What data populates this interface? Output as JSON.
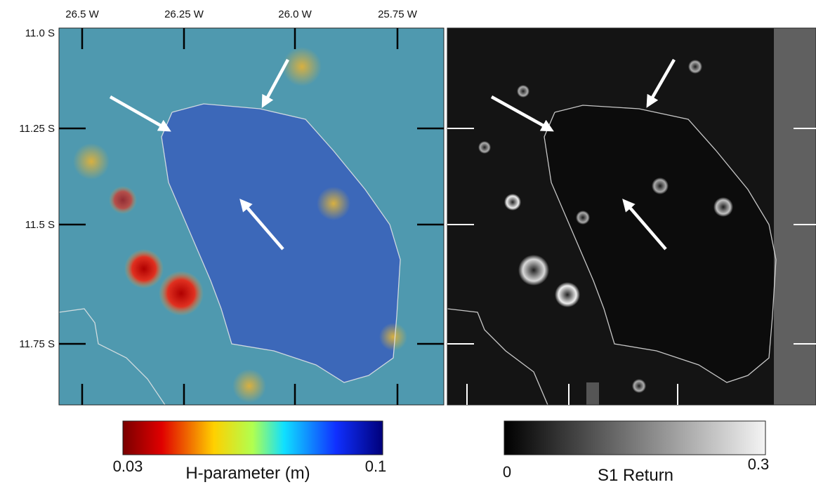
{
  "left_panel": {
    "x_labels": [
      "26.5 W",
      "26.25 W",
      "26.0 W",
      "25.75 W"
    ],
    "y_labels": [
      "11.0 S",
      "11.25 S",
      "11.5 S",
      "11.75 S"
    ],
    "colorbar": {
      "min_label": "0.03",
      "max_label": "0.1",
      "title": "H-parameter (m)"
    }
  },
  "right_panel": {
    "colorbar": {
      "min_label": "0",
      "max_label": "0.3",
      "title": "S1 Return"
    }
  }
}
